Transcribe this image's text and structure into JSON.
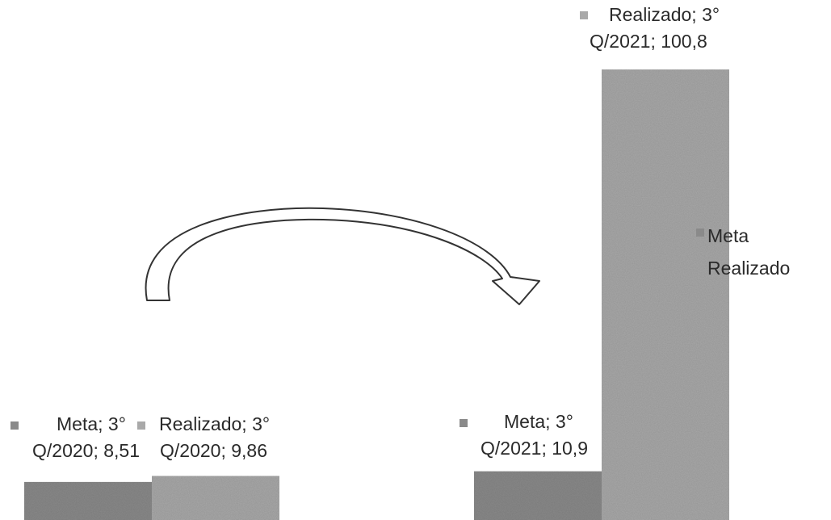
{
  "chart_data": {
    "type": "bar",
    "categories": [
      "3° Q/2020",
      "3° Q/2021"
    ],
    "series": [
      {
        "name": "Meta",
        "values": [
          8.51,
          10.9
        ],
        "color": "#8a8a8a"
      },
      {
        "name": "Realizado",
        "values": [
          9.86,
          100.8
        ],
        "color": "#a9a9a9"
      }
    ],
    "data_labels": [
      [
        "Meta; 3°",
        "Q/2020; 8,51"
      ],
      [
        "Realizado; 3°",
        "Q/2020; 9,86"
      ],
      [
        "Meta; 3°",
        "Q/2021; 10,9"
      ],
      [
        "Realizado; 3°",
        "Q/2021; 100,8"
      ]
    ],
    "legend": {
      "entries": [
        "Meta",
        "Realizado"
      ],
      "position": "right"
    },
    "annotation": {
      "shape": "curved-arrow",
      "from": "3° Q/2020",
      "to": "3° Q/2021"
    },
    "grid": false
  }
}
